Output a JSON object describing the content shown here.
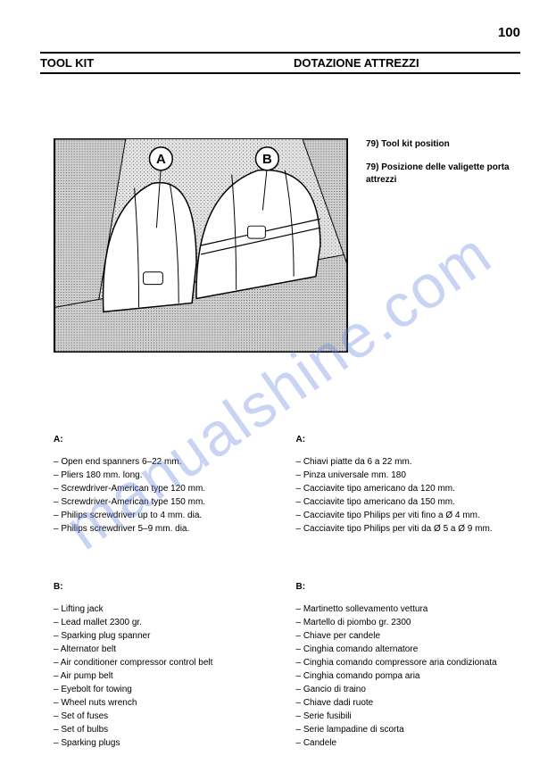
{
  "page_number": "100",
  "header": {
    "left": "TOOL KIT",
    "right": "DOTAZIONE ATTREZZI"
  },
  "captions": {
    "en": {
      "num": "79)",
      "text": "Tool kit position"
    },
    "it": {
      "num": "79)",
      "text": "Posizione delle valigette porta attrezzi"
    }
  },
  "figure_labels": {
    "a": "A",
    "b": "B"
  },
  "sections": {
    "en": {
      "a": {
        "label": "A:",
        "items": [
          "Open end spanners 6–22 mm.",
          "Pliers 180 mm. long.",
          "Screwdriver-American type 120 mm.",
          "Screwdriver-American type 150 mm.",
          "Philips screwdriver up to 4 mm. dia.",
          "Philips screwdriver 5–9 mm. dia."
        ]
      },
      "b": {
        "label": "B:",
        "items": [
          "Lifting jack",
          "Lead mallet 2300 gr.",
          "Sparking plug spanner",
          "Alternator belt",
          "Air conditioner compressor control belt",
          "Air pump belt",
          "Eyebolt for towing",
          "Wheel nuts wrench",
          "Set of fuses",
          "Set of bulbs",
          "Sparking plugs"
        ]
      }
    },
    "it": {
      "a": {
        "label": "A:",
        "items": [
          "Chiavi piatte da 6 a 22 mm.",
          "Pinza universale mm. 180",
          "Cacciavite tipo americano da 120 mm.",
          "Cacciavite tipo americano da 150 mm.",
          "Cacciavite tipo Philips per viti fino a Ø 4 mm.",
          "Cacciavite tipo Philips per viti da Ø 5 a Ø 9 mm."
        ]
      },
      "b": {
        "label": "B:",
        "items": [
          "Martinetto sollevamento vettura",
          "Martello di piombo gr. 2300",
          "Chiave per candele",
          "Cinghia comando alternatore",
          "Cinghia comando compressore aria condizionata",
          "Cinghia comando pompa aria",
          "Gancio di traino",
          "Chiave dadi ruote",
          "Serie fusibili",
          "Serie lampadine di scorta",
          "Candele"
        ]
      }
    }
  },
  "watermark": "manualshine.com",
  "colors": {
    "text": "#000000",
    "background": "#ffffff",
    "watermark": "rgba(100,130,220,0.35)",
    "figure_bg": "#f5f5f5"
  }
}
